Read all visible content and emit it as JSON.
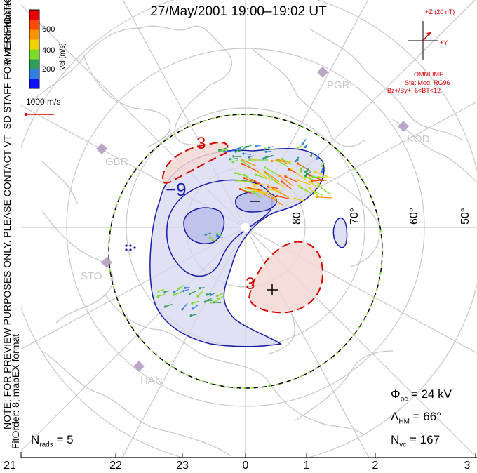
{
  "title": "27/May/2001 19:00–19:02 UT",
  "colorbar": {
    "title": "MLT coordinates",
    "label": "Vel [m/s]",
    "ticks": [
      "600",
      "400",
      "200"
    ],
    "colors": [
      "#1010ff",
      "#2f7fe0",
      "#2e9e5a",
      "#7ddc2a",
      "#f0d000",
      "#ff9000",
      "#ff4a00",
      "#e80000"
    ]
  },
  "ref_vector": {
    "label": "1000 m/s",
    "color": "#d40000"
  },
  "notes": {
    "left_vertical": "NOTE: FOR PREVIEW PURPOSES ONLY. PLEASE CONTACT VT–SD STAFF FOR VERIFICATION.",
    "left_vertical2": "FitOrder: 8, mapEX format"
  },
  "imf": {
    "z_label": "+Z (20 nT)",
    "y_label": "+Y",
    "source": "OMNI IMF",
    "model": "Stat Mod: RG96",
    "condition": "Bz+/By+, 6<BT<12"
  },
  "stats": {
    "phi_pc": "Φ",
    "phi_pc_sub": "pc",
    "phi_pc_value": " = 24 kV",
    "lambda_hm": "Λ",
    "lambda_hm_sub": "HM",
    "lambda_hm_value": " = 66°",
    "n_vc": "N",
    "n_vc_sub": "vc",
    "n_vc_value": " = 167",
    "n_rads": "N",
    "n_rads_sub": "rads",
    "n_rads_value": " = 5"
  },
  "latitude_labels": [
    "80",
    "70°",
    "60°",
    "50°"
  ],
  "stations": [
    "PGR",
    "KOD",
    "GBR",
    "STO",
    "HAN"
  ],
  "contour_labels": {
    "neg": "−9",
    "pos": "3",
    "neg2": "3"
  },
  "mlt_labels": [
    "21",
    "22",
    "23",
    "0",
    "1",
    "2",
    "3"
  ],
  "colors": {
    "neg_fill": "#d6d8f0",
    "pos_fill": "#f3d8d3",
    "neg_line": "#1a1aa8",
    "pos_line": "#d40000",
    "boundary_green": "#7ddc2a",
    "grid": "#c8c8c8"
  }
}
